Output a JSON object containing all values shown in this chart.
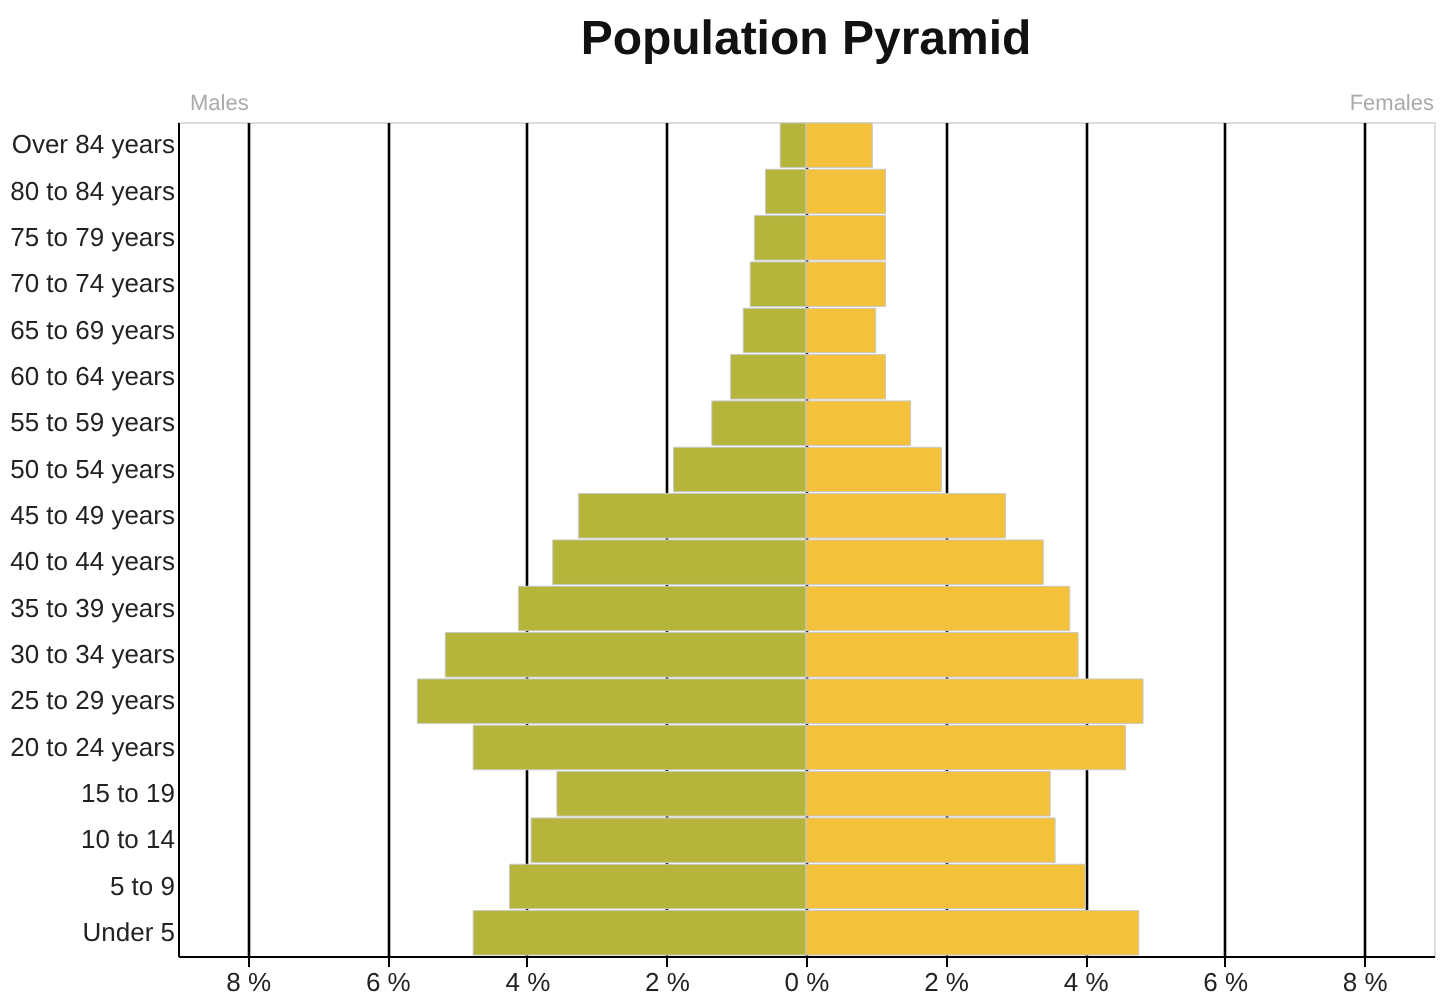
{
  "chart_data": {
    "type": "bar",
    "orientation": "horizontal",
    "title": "Population Pyramid",
    "categories": [
      "Over 84 years",
      "80 to 84 years",
      "75 to 79 years",
      "70 to 74 years",
      "65 to 69 years",
      "60 to 64 years",
      "55 to 59 years",
      "50 to 54 years",
      "45 to 49 years",
      "40 to 44 years",
      "35 to 39 years",
      "30 to 34 years",
      "25 to 29 years",
      "20 to 24 years",
      "15 to 19",
      "10 to 14",
      "5 to 9",
      "Under 5"
    ],
    "series": [
      {
        "color": "#b5b53c",
        "values": [
          -0.37,
          -0.58,
          -0.74,
          -0.8,
          -0.9,
          -1.08,
          -1.35,
          -1.9,
          -3.26,
          -3.63,
          -4.12,
          -5.17,
          -5.57,
          -4.77,
          -3.57,
          -3.94,
          -4.25,
          -4.77
        ]
      },
      {
        "color": "#f3c13a",
        "values": [
          0.95,
          1.14,
          1.14,
          1.14,
          1.0,
          1.14,
          1.5,
          1.94,
          2.86,
          3.4,
          3.78,
          3.9,
          4.83,
          4.58,
          3.5,
          3.57,
          4.0,
          4.77
        ]
      }
    ],
    "xlim": [
      -9,
      9
    ],
    "xticks": [
      {
        "value": -8,
        "label": "8 %"
      },
      {
        "value": -6,
        "label": "6 %"
      },
      {
        "value": -4,
        "label": "4 %"
      },
      {
        "value": -2,
        "label": "2 %"
      },
      {
        "value": 0,
        "label": "0 %"
      },
      {
        "value": 2,
        "label": "2 %"
      },
      {
        "value": 4,
        "label": "4 %"
      },
      {
        "value": 6,
        "label": "6 %"
      },
      {
        "value": 8,
        "label": "8 %"
      }
    ],
    "stacked": true,
    "annotations": [
      "Males",
      "Females"
    ],
    "grid": "x",
    "legend": false
  }
}
